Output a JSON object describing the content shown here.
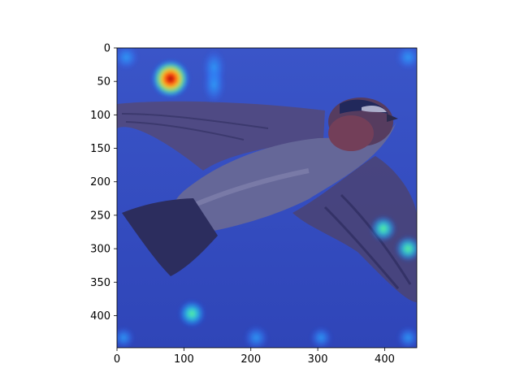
{
  "chart_data": {
    "type": "heatmap",
    "title": "",
    "xlabel": "",
    "ylabel": "",
    "image_size": [
      448,
      448
    ],
    "xlim": [
      0,
      448
    ],
    "ylim": [
      448,
      0
    ],
    "x_ticks": [
      0,
      100,
      200,
      300,
      400
    ],
    "y_ticks": [
      0,
      50,
      100,
      150,
      200,
      250,
      300,
      350,
      400
    ],
    "grid": false,
    "legend": "none",
    "colormap": "jet",
    "background_colors": [
      "#3a55c8",
      "#2f45b8"
    ],
    "hotspots": [
      {
        "x": 80,
        "y": 46,
        "intensity": 1.0
      },
      {
        "x": 14,
        "y": 14,
        "intensity": 0.35
      },
      {
        "x": 145,
        "y": 30,
        "intensity": 0.3
      },
      {
        "x": 145,
        "y": 55,
        "intensity": 0.28
      },
      {
        "x": 435,
        "y": 14,
        "intensity": 0.35
      },
      {
        "x": 398,
        "y": 270,
        "intensity": 0.45
      },
      {
        "x": 435,
        "y": 300,
        "intensity": 0.45
      },
      {
        "x": 112,
        "y": 397,
        "intensity": 0.5
      },
      {
        "x": 208,
        "y": 433,
        "intensity": 0.35
      },
      {
        "x": 305,
        "y": 433,
        "intensity": 0.25
      },
      {
        "x": 435,
        "y": 433,
        "intensity": 0.25
      },
      {
        "x": 10,
        "y": 433,
        "intensity": 0.22
      }
    ]
  }
}
